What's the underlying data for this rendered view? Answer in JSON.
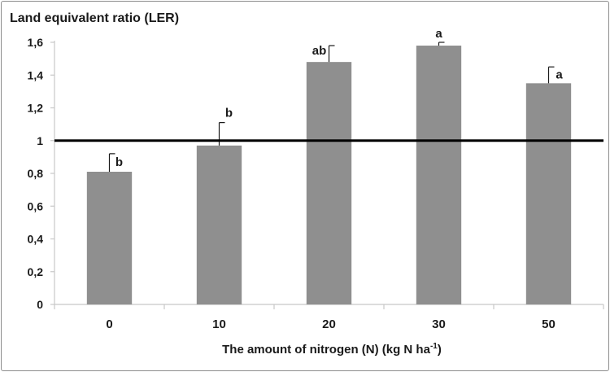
{
  "chart_data": {
    "type": "bar",
    "title": "Land equivalent ratio (LER)",
    "xlabel": "The amount of nitrogen (N) (kg  N ha",
    "xlabel_sup": "-1",
    "xlabel_tail": ")",
    "categories": [
      "0",
      "10",
      "20",
      "30",
      "50"
    ],
    "values": [
      0.81,
      0.97,
      1.48,
      1.58,
      1.35
    ],
    "errors": [
      0.11,
      0.14,
      0.1,
      0.02,
      0.1
    ],
    "significance": [
      "b",
      "b",
      "ab",
      "a",
      "a"
    ],
    "reference_line": 1,
    "ylim": [
      0,
      1.6
    ],
    "yticks": [
      "0",
      "0,2",
      "0,4",
      "0,6",
      "0,8",
      "1",
      "1,2",
      "1,4",
      "1,6"
    ],
    "ytick_values": [
      0,
      0.2,
      0.4,
      0.6,
      0.8,
      1.0,
      1.2,
      1.4,
      1.6
    ],
    "grid": false,
    "legend": "none",
    "colors": {
      "bar": "#8f8f8f",
      "reference_line": "#000000",
      "axis": "#c8c8c8",
      "text": "#1a1a1a"
    }
  }
}
